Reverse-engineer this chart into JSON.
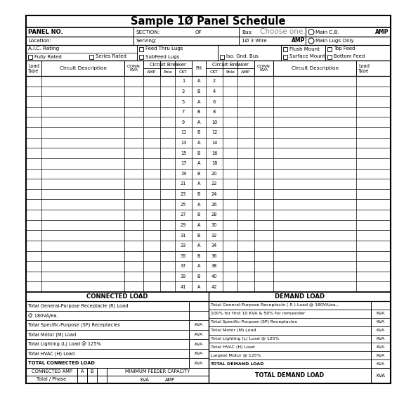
{
  "title": "Sample 1Ø Panel Schedule",
  "bg_color": "#ffffff",
  "choose_color": "#888888",
  "circuit_rows": [
    [
      1,
      "A",
      2
    ],
    [
      3,
      "B",
      4
    ],
    [
      5,
      "A",
      6
    ],
    [
      7,
      "B",
      8
    ],
    [
      9,
      "A",
      10
    ],
    [
      11,
      "B",
      12
    ],
    [
      13,
      "A",
      14
    ],
    [
      15,
      "B",
      16
    ],
    [
      17,
      "A",
      18
    ],
    [
      19,
      "B",
      20
    ],
    [
      21,
      "A",
      22
    ],
    [
      23,
      "B",
      24
    ],
    [
      25,
      "A",
      26
    ],
    [
      27,
      "B",
      28
    ],
    [
      29,
      "A",
      30
    ],
    [
      31,
      "B",
      32
    ],
    [
      33,
      "A",
      34
    ],
    [
      35,
      "B",
      36
    ],
    [
      37,
      "A",
      38
    ],
    [
      39,
      "B",
      40
    ],
    [
      41,
      "A",
      42
    ]
  ],
  "conn_display": [
    [
      "Total General-Purpose Receptacle (R) Load",
      false,
      false
    ],
    [
      "@ 180VA/ea.",
      false,
      false
    ],
    [
      "Total Specific-Purpose (SP) Receptacles",
      false,
      true
    ],
    [
      "Total Motor (M) Load",
      false,
      true
    ],
    [
      "Total Lighting (L) Load @ 125%",
      false,
      true
    ],
    [
      "Total HVAC (H) Load",
      false,
      true
    ],
    [
      "TOTAL CONNECTED LOAD",
      true,
      true
    ]
  ],
  "dem_display": [
    [
      "Total General-Purpose Receptacle ( R ) Load @ 180VA/ea.,",
      false,
      false
    ],
    [
      "100% for first 10 KVA & 50% for remainder",
      false,
      true
    ],
    [
      "Total Specific-Purpose (SP) Receptacles",
      false,
      true
    ],
    [
      "Total Motor (M) Load",
      false,
      true
    ],
    [
      "Total Lighting (L) Load @ 125%",
      false,
      true
    ],
    [
      "Total HVAC (H) Load",
      false,
      true
    ],
    [
      "Largest Motor @ 125%",
      false,
      true
    ],
    [
      "TOTAL DEMAND LOAD",
      true,
      true
    ]
  ]
}
